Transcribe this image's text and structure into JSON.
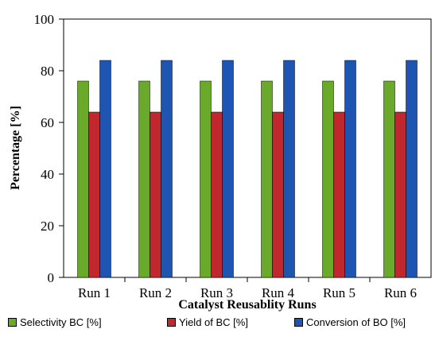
{
  "chart_data": {
    "type": "bar",
    "title": "",
    "xlabel": "Catalyst Reusablity Runs",
    "ylabel": "Percentage [%]",
    "ylim": [
      0,
      100
    ],
    "yticks": [
      "0",
      "20",
      "40",
      "60",
      "80",
      "100"
    ],
    "categories": [
      "Run 1",
      "Run 2",
      "Run 3",
      "Run 4",
      "Run 5",
      "Run 6"
    ],
    "series": [
      {
        "name": "Selectivity BC [%]",
        "color": "#6aaa2a",
        "values": [
          76,
          76,
          76,
          76,
          76,
          76
        ]
      },
      {
        "name": "Yield of BC [%]",
        "color": "#c0282d",
        "values": [
          64,
          64,
          64,
          64,
          64,
          64
        ]
      },
      {
        "name": "Conversion of BO [%]",
        "color": "#1e55b3",
        "values": [
          84,
          84,
          84,
          84,
          84,
          84
        ]
      }
    ],
    "grid": false,
    "legend_position": "bottom"
  }
}
